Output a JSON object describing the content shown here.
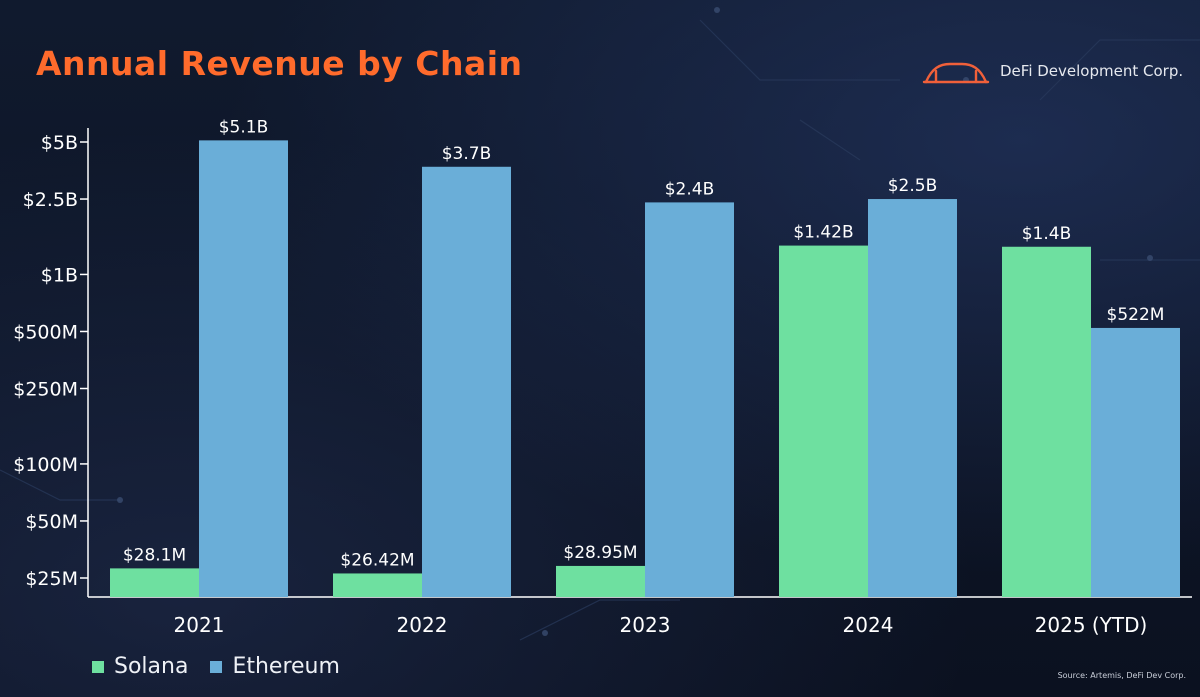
{
  "header": {
    "title": "Annual Revenue by Chain",
    "brand": "DeFi Development Corp."
  },
  "colors": {
    "solana": "#6ee0a0",
    "ethereum": "#6aaed8",
    "title": "#ff6b2c",
    "background": "#0d1424"
  },
  "chart_data": {
    "type": "bar",
    "title": "Annual Revenue by Chain",
    "xlabel": "",
    "ylabel": "",
    "scale": "log",
    "categories": [
      "2021",
      "2022",
      "2023",
      "2024",
      "2025 (YTD)"
    ],
    "series": [
      {
        "name": "Solana",
        "values": [
          28100000,
          26420000,
          28950000,
          1420000000,
          1400000000
        ],
        "labels": [
          "$28.1M",
          "$26.42M",
          "$28.95M",
          "$1.42B",
          "$1.4B"
        ]
      },
      {
        "name": "Ethereum",
        "values": [
          5100000000,
          3700000000,
          2400000000,
          2500000000,
          522000000
        ],
        "labels": [
          "$5.1B",
          "$3.7B",
          "$2.4B",
          "$2.5B",
          "$522M"
        ]
      }
    ],
    "yticks": [
      25000000,
      50000000,
      100000000,
      250000000,
      500000000,
      1000000000,
      2500000000,
      5000000000
    ],
    "ytick_labels": [
      "$25M",
      "$50M",
      "$100M",
      "$250M",
      "$500M",
      "$1B",
      "$2.5B",
      "$5B"
    ],
    "legend": "bottom-left",
    "grid": false
  },
  "legend": {
    "items": [
      {
        "name": "Solana"
      },
      {
        "name": "Ethereum"
      }
    ]
  },
  "footer": {
    "source": "Source: Artemis, DeFi Dev Corp."
  }
}
